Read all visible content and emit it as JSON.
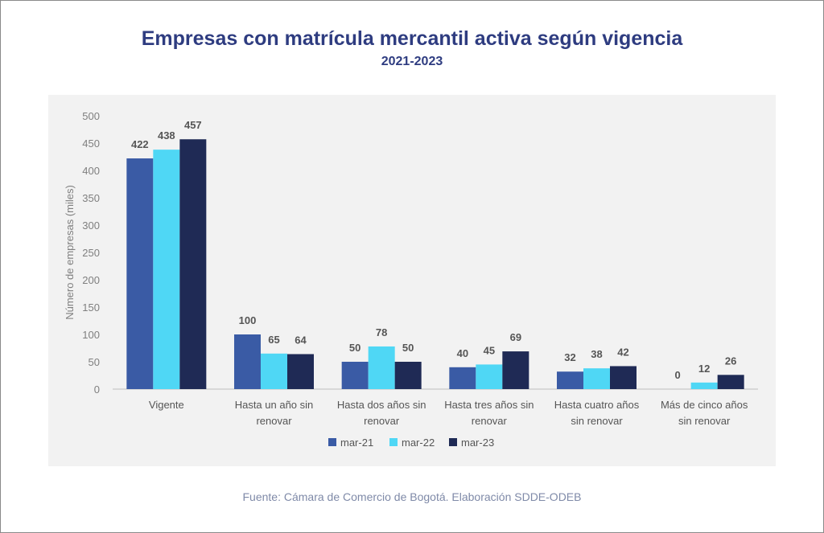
{
  "header": {
    "title": "Empresas con matrícula mercantil activa según vigencia",
    "subtitle": "2021-2023"
  },
  "footer": {
    "source": "Fuente: Cámara de Comercio de Bogotá. Elaboración SDDE-ODEB"
  },
  "colors": {
    "title": "#2e3c80",
    "axis_text": "#7f7f7f",
    "label_text": "#555555"
  },
  "chart_data": {
    "type": "bar",
    "title": "Empresas con matrícula mercantil activa según vigencia",
    "subtitle": "2021-2023",
    "xlabel": "",
    "ylabel": "Número de empresas (miles)",
    "ylim": [
      0,
      500
    ],
    "yticks": [
      0,
      50,
      100,
      150,
      200,
      250,
      300,
      350,
      400,
      450,
      500
    ],
    "grid": false,
    "legend_position": "bottom",
    "categories": [
      [
        "Vigente"
      ],
      [
        "Hasta un año sin",
        "renovar"
      ],
      [
        "Hasta dos años sin",
        "renovar"
      ],
      [
        "Hasta tres años sin",
        "renovar"
      ],
      [
        "Hasta cuatro años",
        "sin renovar"
      ],
      [
        "Más de cinco años",
        "sin renovar"
      ]
    ],
    "series": [
      {
        "name": "mar-21",
        "color": "#3a5ba5",
        "values": [
          422,
          100,
          50,
          40,
          32,
          0
        ]
      },
      {
        "name": "mar-22",
        "color": "#4fd7f5",
        "values": [
          438,
          65,
          78,
          45,
          38,
          12
        ]
      },
      {
        "name": "mar-23",
        "color": "#1f2a55",
        "values": [
          457,
          64,
          50,
          69,
          42,
          26
        ]
      }
    ]
  }
}
